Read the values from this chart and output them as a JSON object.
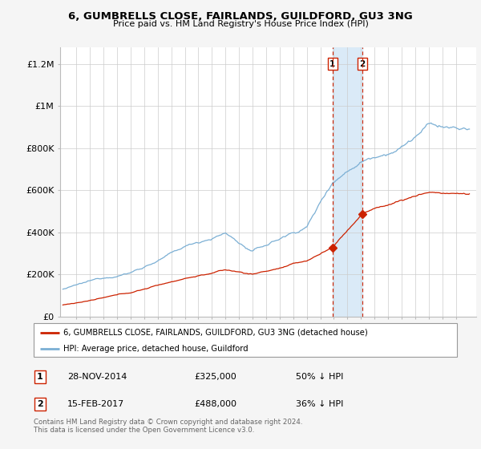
{
  "title": "6, GUMBRELLS CLOSE, FAIRLANDS, GUILDFORD, GU3 3NG",
  "subtitle": "Price paid vs. HM Land Registry's House Price Index (HPI)",
  "legend_line1": "6, GUMBRELLS CLOSE, FAIRLANDS, GUILDFORD, GU3 3NG (detached house)",
  "legend_line2": "HPI: Average price, detached house, Guildford",
  "transaction1_date": "28-NOV-2014",
  "transaction1_price": 325000,
  "transaction1_label": "£325,000",
  "transaction1_note": "50% ↓ HPI",
  "transaction2_date": "15-FEB-2017",
  "transaction2_price": 488000,
  "transaction2_label": "£488,000",
  "transaction2_note": "36% ↓ HPI",
  "footer": "Contains HM Land Registry data © Crown copyright and database right 2024.\nThis data is licensed under the Open Government Licence v3.0.",
  "hpi_color": "#7bafd4",
  "price_color": "#cc2200",
  "vline_color": "#cc2200",
  "highlight_color": "#daeaf7",
  "bg_color": "#f5f5f5",
  "plot_bg": "#ffffff",
  "yticks": [
    0,
    200000,
    400000,
    600000,
    800000,
    1000000,
    1200000
  ],
  "ylabels": [
    "£0",
    "£200K",
    "£400K",
    "£600K",
    "£800K",
    "£1M",
    "£1.2M"
  ],
  "ylim": [
    0,
    1280000
  ],
  "t1_year": 2014.9,
  "t2_year": 2017.1
}
